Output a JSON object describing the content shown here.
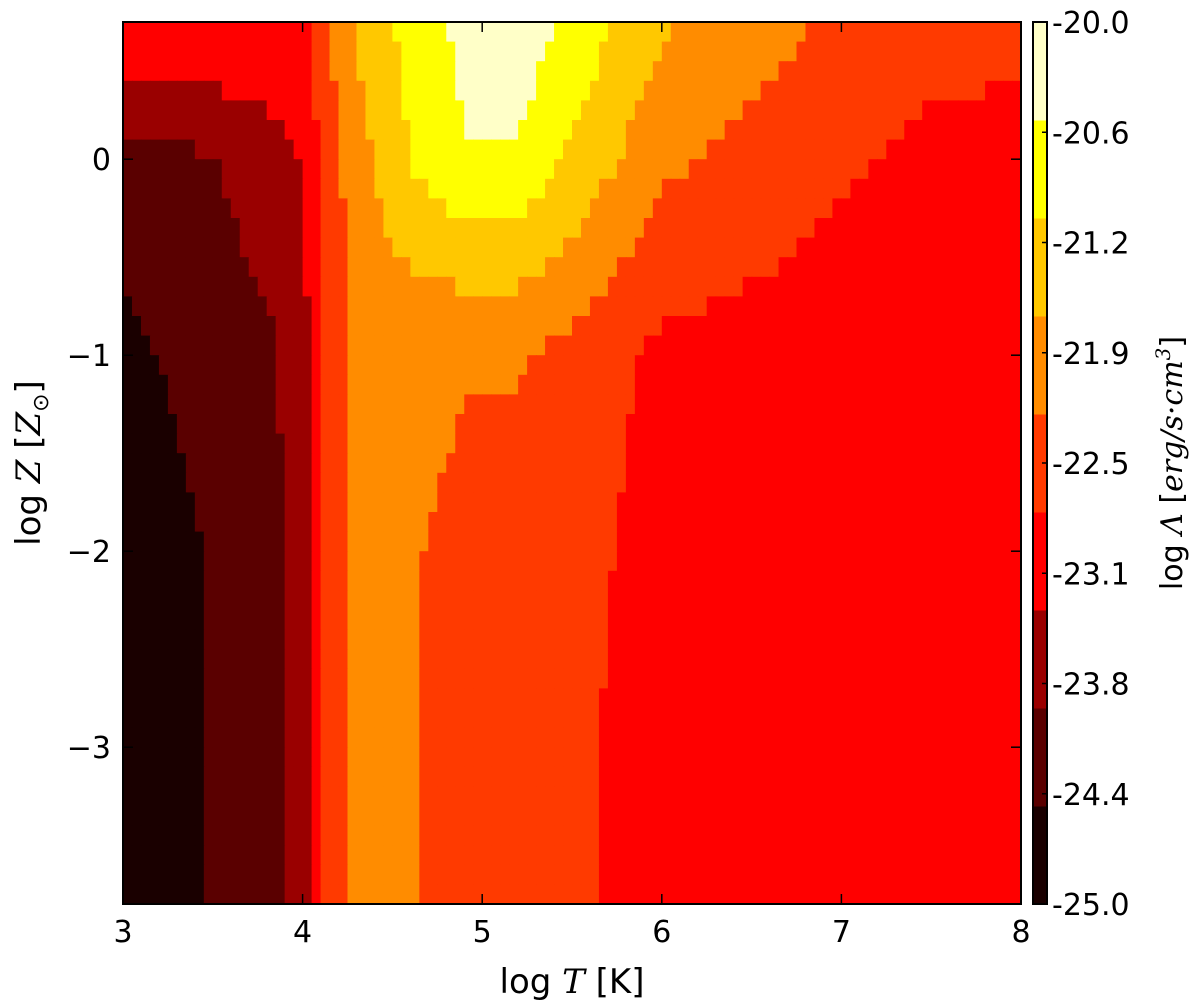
{
  "chart_data": {
    "type": "heatmap",
    "xlabel": {
      "prefix": "log ",
      "var": "T",
      "unit": " [K]"
    },
    "ylabel": {
      "prefix": "log ",
      "var": "Z",
      "bracket_open": " [",
      "sym": "Z",
      "sub": "⊙",
      "bracket_close": "]"
    },
    "colorbar_label": {
      "prefix": "log ",
      "var": "Λ",
      "unit_open": " [",
      "unit": "erg/s·cm",
      "sup": "3",
      "unit_close": "]"
    },
    "x_range": [
      3,
      8
    ],
    "y_range": [
      -3.8,
      0.7
    ],
    "x_ticks": [
      3,
      4,
      5,
      6,
      7,
      8
    ],
    "x_tick_labels": [
      "3",
      "4",
      "5",
      "6",
      "7",
      "8"
    ],
    "y_ticks": [
      0,
      -1,
      -2,
      -3
    ],
    "y_tick_labels": [
      "0",
      "−1",
      "−2",
      "−3"
    ],
    "colorbar_range": [
      -25.0,
      -20.0
    ],
    "colorbar_ticks": [
      -25.0,
      -24.4,
      -23.8,
      -23.1,
      -22.5,
      -21.9,
      -21.2,
      -20.6,
      -20.0
    ],
    "colorbar_tick_labels": [
      "-25.0",
      "-24.4",
      "-23.8",
      "-23.1",
      "-22.5",
      "-21.9",
      "-21.2",
      "-20.6",
      "-20.0"
    ],
    "colormap": [
      "#1a0000",
      "#5a0000",
      "#9a0000",
      "#ff0000",
      "#ff3a00",
      "#ff8c00",
      "#ffc800",
      "#ffff00",
      "#ffffc8"
    ],
    "log_T": [
      3.0,
      3.5,
      3.8,
      4.0,
      4.1,
      4.2,
      4.3,
      4.6,
      4.9,
      5.2,
      5.5,
      6.0,
      6.5,
      7.0,
      7.5,
      8.0
    ],
    "log_Z": [
      0.7,
      0.0,
      -1.0,
      -2.0,
      -3.0,
      -3.8
    ],
    "log_Lambda": [
      [
        -22.8,
        -22.8,
        -22.9,
        -23.0,
        -22.4,
        -22.0,
        -21.6,
        -20.9,
        -20.4,
        -20.2,
        -20.7,
        -21.6,
        -22.0,
        -22.3,
        -22.6,
        -22.7
      ],
      [
        -24.2,
        -23.9,
        -23.6,
        -23.3,
        -22.7,
        -22.3,
        -21.9,
        -21.1,
        -20.6,
        -20.6,
        -21.2,
        -22.1,
        -22.4,
        -22.7,
        -22.9,
        -22.9
      ],
      [
        -24.6,
        -24.2,
        -24.0,
        -23.6,
        -22.9,
        -22.4,
        -22.0,
        -22.1,
        -22.2,
        -22.2,
        -22.4,
        -22.9,
        -23.0,
        -23.1,
        -23.1,
        -22.9
      ],
      [
        -24.8,
        -24.4,
        -24.1,
        -23.7,
        -22.9,
        -22.4,
        -22.1,
        -22.2,
        -22.3,
        -22.3,
        -22.5,
        -23.1,
        -23.2,
        -23.3,
        -23.1,
        -22.9
      ],
      [
        -24.9,
        -24.4,
        -24.1,
        -23.7,
        -22.9,
        -22.4,
        -22.1,
        -22.2,
        -22.3,
        -22.3,
        -22.6,
        -23.2,
        -23.3,
        -23.3,
        -23.1,
        -22.9
      ],
      [
        -25.0,
        -24.4,
        -24.1,
        -23.7,
        -22.9,
        -22.4,
        -22.1,
        -22.2,
        -22.3,
        -22.3,
        -22.6,
        -23.3,
        -23.3,
        -23.3,
        -23.1,
        -22.9
      ]
    ]
  }
}
